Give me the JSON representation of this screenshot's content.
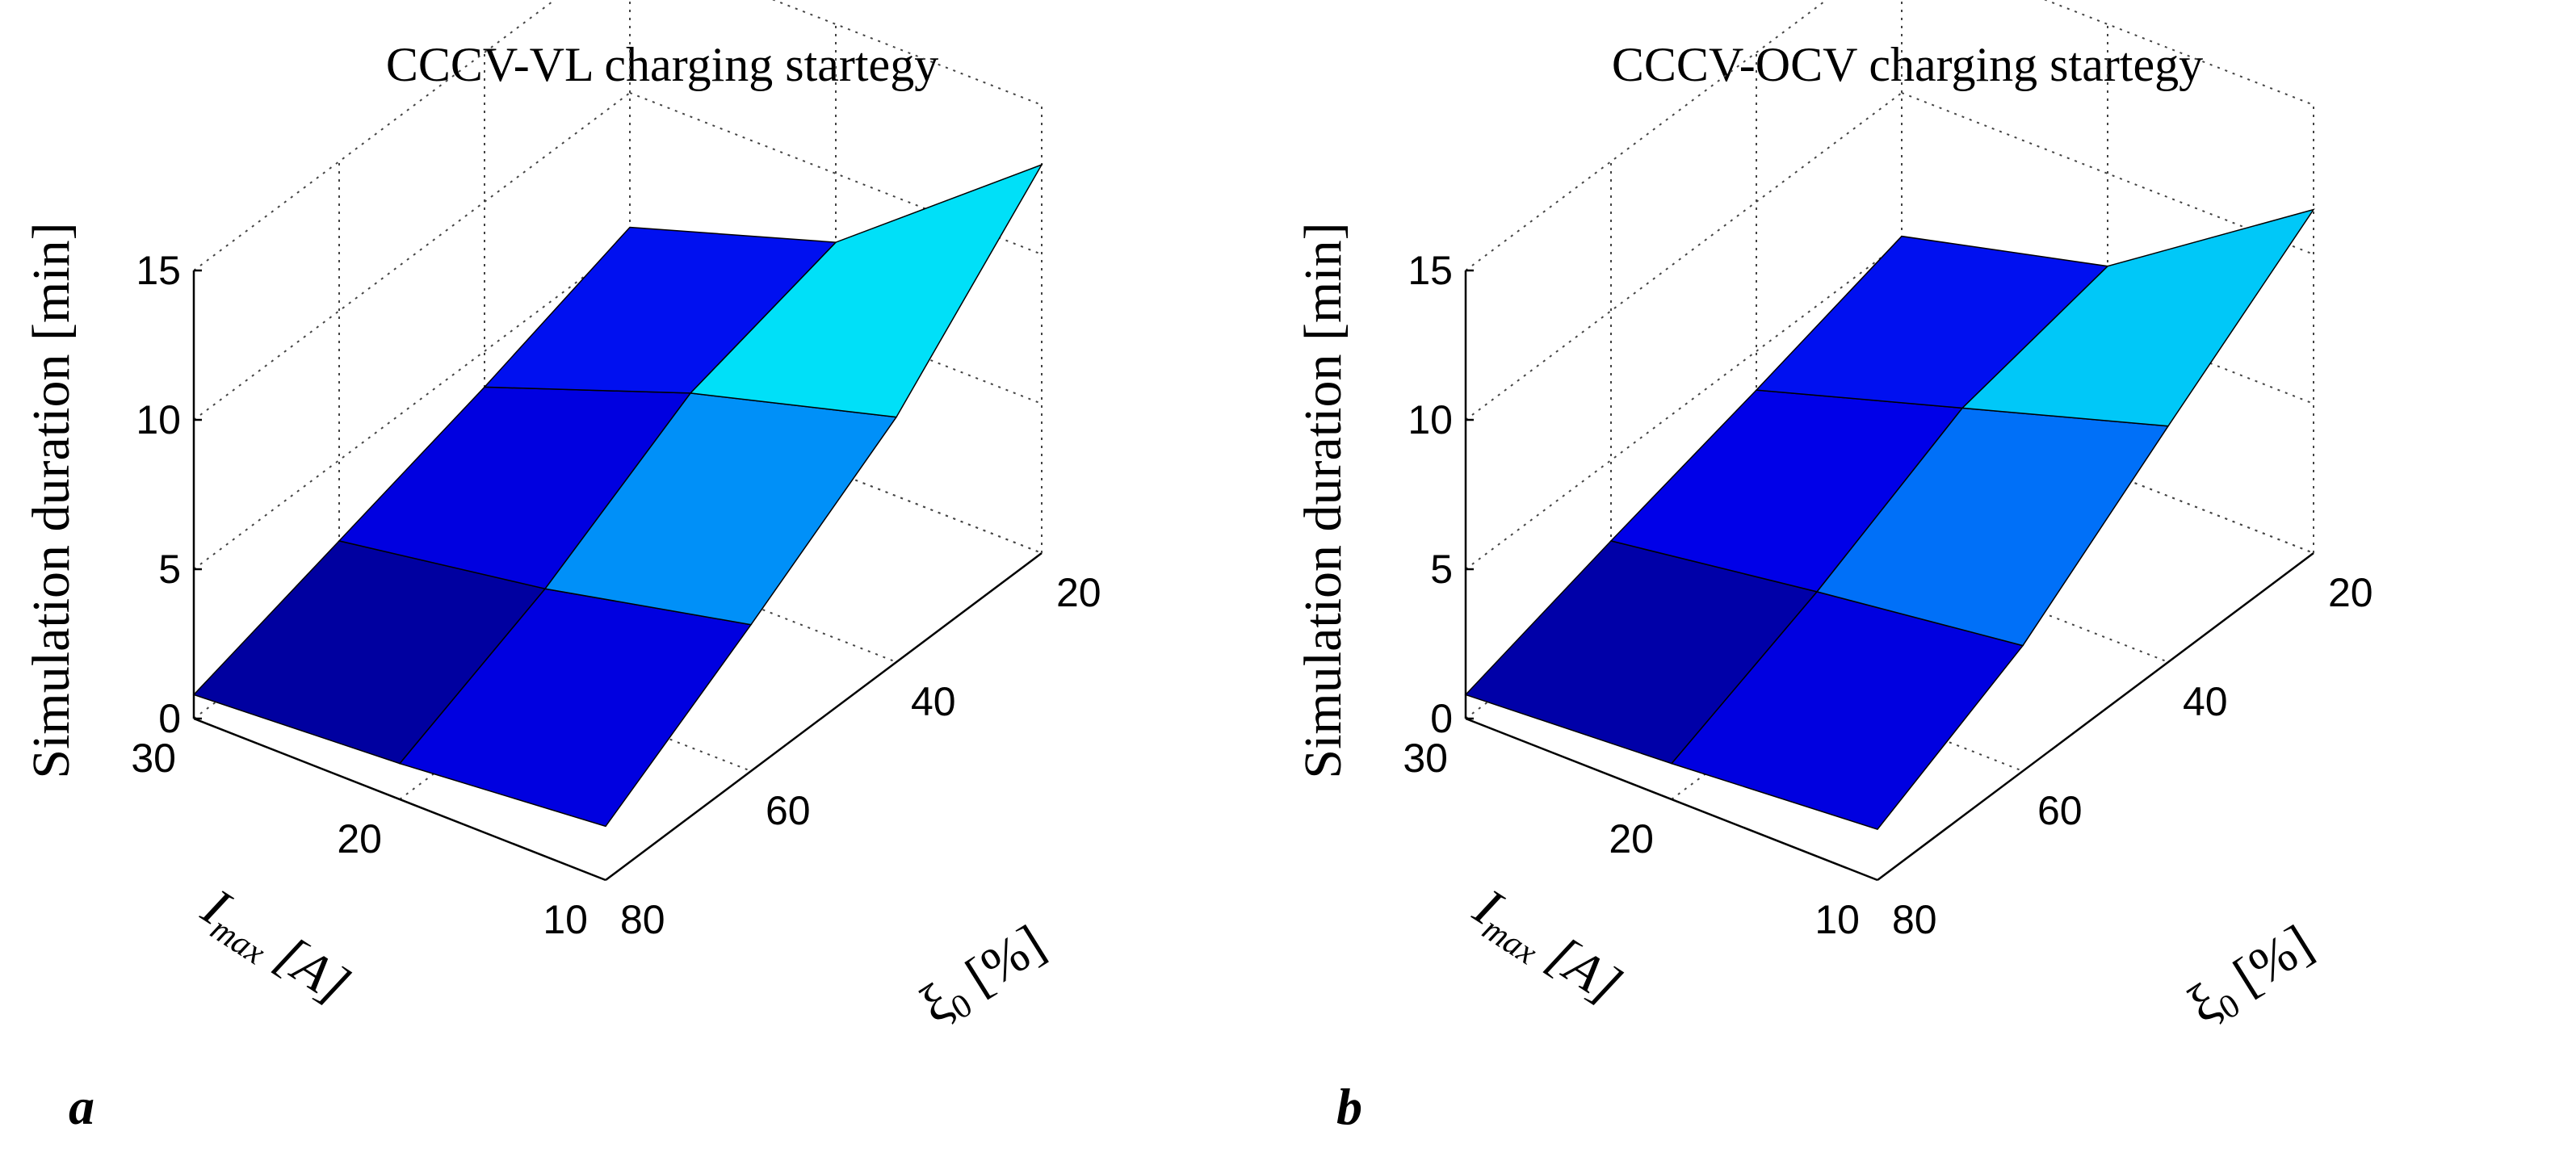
{
  "chart_data": [
    {
      "type": "surface3d",
      "panel": "a",
      "title": "CCCV-VL charging startegy",
      "zlabel": "Simulation duration [min]",
      "xlabel_main": "I",
      "xlabel_sub": "max",
      "xlabel_unit": " [A]",
      "ylabel_main": "ξ",
      "ylabel_sub": "0",
      "ylabel_unit": " [%]",
      "x_ticks": [
        "30",
        "20",
        "10"
      ],
      "y_ticks": [
        "80",
        "60",
        "40",
        "20"
      ],
      "z_ticks": [
        "0",
        "5",
        "10",
        "15"
      ],
      "zlim": [
        0,
        15
      ],
      "I_max_values": [
        30,
        20,
        10
      ],
      "xi0_values": [
        80,
        60,
        40,
        20
      ],
      "z_values": [
        [
          0.8,
          2.3,
          3.8,
          5.5
        ],
        [
          1.2,
          3.4,
          6.3,
          7.7
        ],
        [
          1.8,
          4.9,
          8.2,
          13.0
        ]
      ],
      "cell_colors": [
        [
          "#0000a0",
          "#0000e0",
          "#0090f8"
        ],
        [
          "#0000e0",
          "#0090f8",
          "#00f0f8"
        ],
        [
          "#0010f0",
          "#00e0f8",
          "#e8f800"
        ]
      ]
    },
    {
      "type": "surface3d",
      "panel": "b",
      "title": "CCCV-OCV charging startegy",
      "zlabel": "Simulation duration [min]",
      "xlabel_main": "I",
      "xlabel_sub": "max",
      "xlabel_unit": " [A]",
      "ylabel_main": "ξ",
      "ylabel_sub": "0",
      "ylabel_unit": " [%]",
      "x_ticks": [
        "30",
        "20",
        "10"
      ],
      "y_ticks": [
        "80",
        "60",
        "40",
        "20"
      ],
      "z_ticks": [
        "0",
        "5",
        "10",
        "15"
      ],
      "zlim": [
        0,
        15
      ],
      "I_max_values": [
        30,
        20,
        10
      ],
      "xi0_values": [
        80,
        60,
        40,
        20
      ],
      "z_values": [
        [
          0.8,
          2.3,
          3.7,
          5.2
        ],
        [
          1.2,
          3.3,
          5.8,
          6.9
        ],
        [
          1.7,
          4.2,
          7.9,
          11.5
        ]
      ],
      "cell_colors": [
        [
          "#0000a8",
          "#0000e0",
          "#0088f8"
        ],
        [
          "#0000e8",
          "#0070f8",
          "#00f0f8"
        ],
        [
          "#0010f0",
          "#00c8f8",
          "#48f040"
        ]
      ]
    }
  ]
}
